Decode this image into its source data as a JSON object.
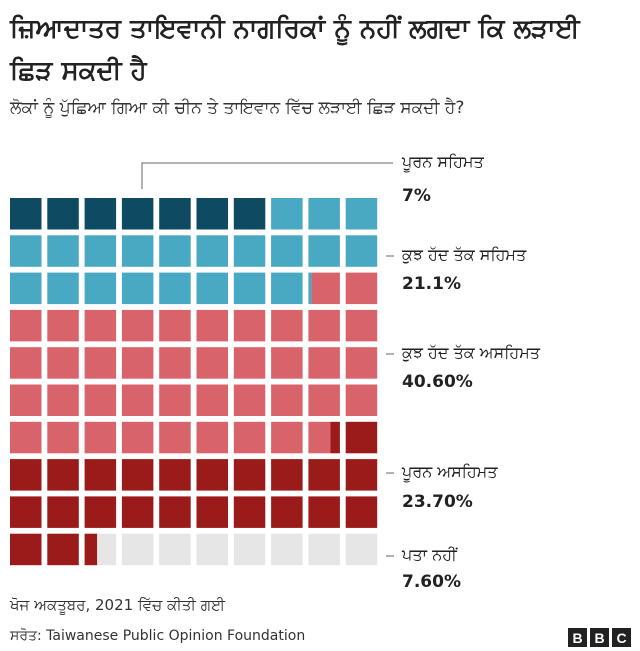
{
  "header": {
    "title": "ਜ਼ਿਆਦਾਤਰ ਤਾਇਵਾਨੀ ਨਾਗਰਿਕਾਂ ਨੂੰ ਨਹੀਂ ਲਗਦਾ ਕਿ ਲੜਾਈ ਛਿੜ ਸਕਦੀ ਹੈ",
    "subtitle": "ਲੋਕਾਂ ਨੂੰ ਪੁੱਛਿਆ ਗਿਆ ਕੀ ਚੀਨ ਤੇ ਤਾਇਵਾਨ ਵਿੱਚ ਲੜਾਈ ਛਿੜ ਸਕਦੀ ਹੈ?"
  },
  "chart_data": {
    "type": "waffle",
    "grid": {
      "rows": 10,
      "cols": 10
    },
    "categories": [
      {
        "label": "ਪੂਰਨ ਸਹਿਮਤ",
        "value_label": "7%",
        "value": 7.0,
        "color": "#0f4a63"
      },
      {
        "label": "ਕੁਝ ਹੱਦ ਤੱਕ ਸਹਿਮਤ",
        "value_label": "21.1%",
        "value": 21.1,
        "color": "#4aa9c2"
      },
      {
        "label": "ਕੁਝ ਹੱਦ ਤੱਕ ਅਸਹਿਮਤ",
        "value_label": "40.60%",
        "value": 40.6,
        "color": "#d9636b"
      },
      {
        "label": "ਪੂਰਨ ਅਸਹਿਮਤ",
        "value_label": "23.70%",
        "value": 23.7,
        "color": "#9b1a1a"
      },
      {
        "label": "ਪਤਾ ਨਹੀਂ",
        "value_label": "7.60%",
        "value": 7.6,
        "color": "#e6e6e6"
      }
    ]
  },
  "footer": {
    "note": "ਖੋਜ ਅਕਤੂਬਰ, 2021 ਵਿੱਚ ਕੀਤੀ ਗਈ",
    "source": "ਸਰੋਤ: Taiwanese Public Opinion Foundation",
    "logo": [
      "B",
      "B",
      "C"
    ]
  }
}
